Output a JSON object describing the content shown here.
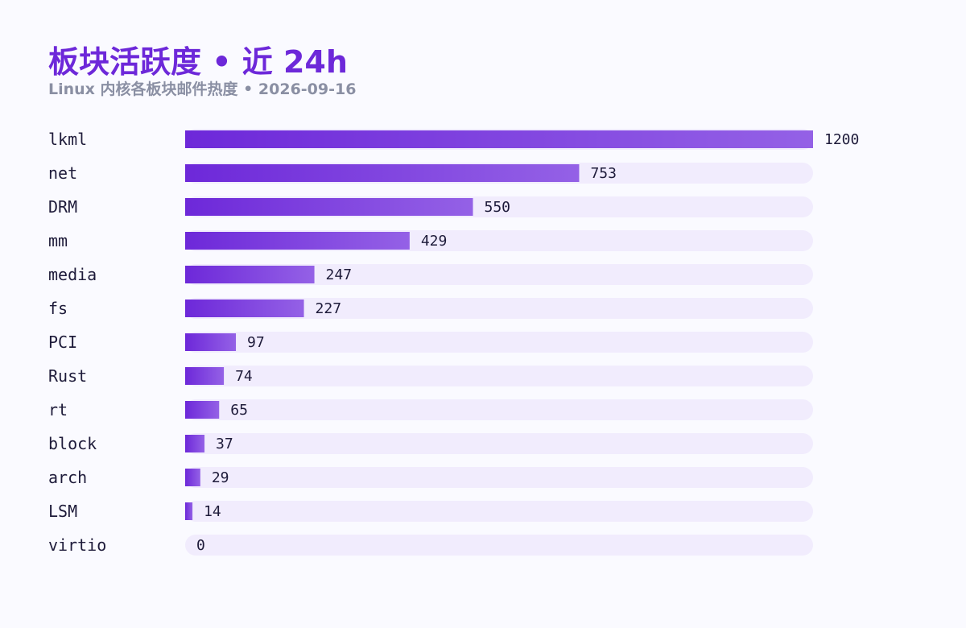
{
  "header": {
    "title": "板块活跃度 • 近 24h",
    "subtitle": "Linux 内核各板块邮件热度 • 2026-09-16"
  },
  "colors": {
    "bar_start": "#6d28d9",
    "bar_end": "#9461e6",
    "track": "#f1ecfd",
    "title": "#6d28d9",
    "subtitle": "#8a8fa3",
    "text": "#1e1b3a"
  },
  "chart_data": {
    "type": "bar",
    "orientation": "horizontal",
    "title": "板块活跃度 • 近 24h",
    "subtitle": "Linux 内核各板块邮件热度 • 2026-09-16",
    "categories": [
      "lkml",
      "net",
      "DRM",
      "mm",
      "media",
      "fs",
      "PCI",
      "Rust",
      "rt",
      "block",
      "arch",
      "LSM",
      "virtio"
    ],
    "values": [
      1200,
      753,
      550,
      429,
      247,
      227,
      97,
      74,
      65,
      37,
      29,
      14,
      0
    ],
    "xlim": [
      0,
      1200
    ],
    "grid": false,
    "legend": "none",
    "data_labels": true
  }
}
